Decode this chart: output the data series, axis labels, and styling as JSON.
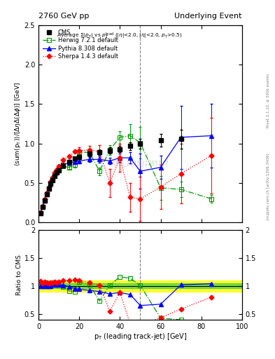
{
  "title_left": "2760 GeV pp",
  "title_right": "Underlying Event",
  "watermark": "CMS_2015_I1385107",
  "xlabel": "p_{T} (leading track-jet) [GeV]",
  "ylabel_main": "<sum(p_{T})>/[Delta_eta Delta(Delta_phi)] [GeV]",
  "ylabel_ratio": "Ratio to CMS",
  "xlim": [
    0,
    100
  ],
  "ylim_main": [
    0,
    2.5
  ],
  "ylim_ratio": [
    0.4,
    2.0
  ],
  "vline_x": 50,
  "green_band": [
    0.96,
    1.04
  ],
  "yellow_band": [
    0.9,
    1.1
  ],
  "cms_x": [
    1,
    2,
    3,
    4,
    5,
    6,
    7,
    8,
    9,
    10,
    12,
    15,
    18,
    20,
    25,
    30,
    35,
    40,
    45,
    50,
    60,
    70
  ],
  "cms_y": [
    0.12,
    0.2,
    0.28,
    0.36,
    0.43,
    0.49,
    0.54,
    0.59,
    0.63,
    0.66,
    0.72,
    0.77,
    0.81,
    0.83,
    0.87,
    0.89,
    0.91,
    0.93,
    0.97,
    1.0,
    1.04,
    1.06
  ],
  "cms_yerr": [
    0.01,
    0.01,
    0.01,
    0.01,
    0.01,
    0.01,
    0.01,
    0.01,
    0.01,
    0.01,
    0.02,
    0.02,
    0.02,
    0.02,
    0.03,
    0.03,
    0.04,
    0.04,
    0.05,
    0.06,
    0.08,
    0.12
  ],
  "herwig_x": [
    1,
    2,
    3,
    4,
    5,
    6,
    7,
    8,
    9,
    10,
    12,
    15,
    18,
    20,
    25,
    30,
    35,
    40,
    45,
    50,
    60,
    70,
    85
  ],
  "herwig_y": [
    0.12,
    0.2,
    0.28,
    0.36,
    0.43,
    0.49,
    0.55,
    0.61,
    0.64,
    0.67,
    0.71,
    0.7,
    0.73,
    0.89,
    0.89,
    0.65,
    0.92,
    1.08,
    1.1,
    1.01,
    0.44,
    0.42,
    0.3
  ],
  "herwig_yerr": [
    0.005,
    0.005,
    0.005,
    0.005,
    0.005,
    0.01,
    0.01,
    0.01,
    0.01,
    0.01,
    0.02,
    0.02,
    0.03,
    0.04,
    0.04,
    0.05,
    0.06,
    0.08,
    0.15,
    0.2,
    0.15,
    0.1,
    0.05
  ],
  "pythia_x": [
    1,
    2,
    3,
    4,
    5,
    6,
    7,
    8,
    9,
    10,
    12,
    15,
    18,
    20,
    25,
    30,
    35,
    40,
    45,
    50,
    60,
    70,
    85
  ],
  "pythia_y": [
    0.12,
    0.2,
    0.28,
    0.36,
    0.43,
    0.49,
    0.55,
    0.61,
    0.64,
    0.67,
    0.73,
    0.76,
    0.77,
    0.78,
    0.8,
    0.8,
    0.78,
    0.82,
    0.82,
    0.65,
    0.7,
    1.08,
    1.1
  ],
  "pythia_yerr": [
    0.005,
    0.005,
    0.005,
    0.005,
    0.005,
    0.01,
    0.01,
    0.01,
    0.01,
    0.01,
    0.02,
    0.02,
    0.02,
    0.03,
    0.03,
    0.04,
    0.04,
    0.05,
    0.07,
    0.22,
    0.15,
    0.4,
    0.4
  ],
  "sherpa_x": [
    1,
    2,
    3,
    4,
    5,
    6,
    7,
    8,
    9,
    10,
    12,
    15,
    18,
    20,
    25,
    30,
    35,
    40,
    45,
    50,
    60,
    70,
    85
  ],
  "sherpa_y": [
    0.13,
    0.21,
    0.3,
    0.38,
    0.45,
    0.52,
    0.57,
    0.63,
    0.67,
    0.71,
    0.79,
    0.84,
    0.9,
    0.91,
    0.92,
    0.9,
    0.5,
    0.82,
    0.32,
    0.3,
    0.45,
    0.62,
    0.85
  ],
  "sherpa_yerr": [
    0.005,
    0.005,
    0.005,
    0.005,
    0.005,
    0.01,
    0.01,
    0.01,
    0.01,
    0.01,
    0.02,
    0.02,
    0.02,
    0.04,
    0.05,
    0.08,
    0.18,
    0.18,
    0.18,
    0.28,
    0.28,
    0.38,
    0.48
  ],
  "cms_color": "black",
  "herwig_color": "#009900",
  "pythia_color": "blue",
  "sherpa_color": "red",
  "fig_width": 3.93,
  "fig_height": 5.12,
  "dpi": 100
}
